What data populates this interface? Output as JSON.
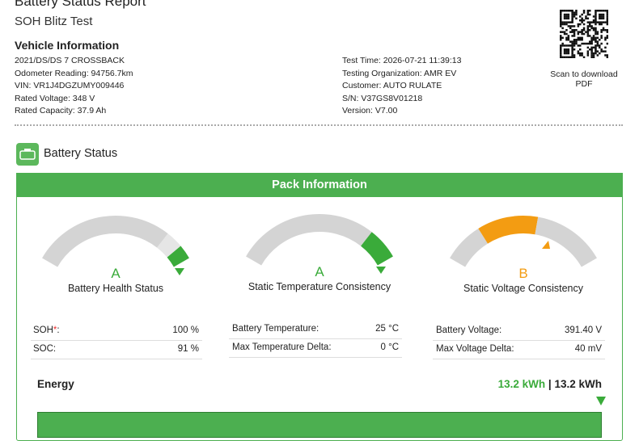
{
  "header": {
    "title": "Battery Status Report",
    "subtitle": "SOH Blitz Test"
  },
  "vehicle": {
    "heading": "Vehicle Information",
    "left": [
      "2021/DS/DS 7 CROSSBACK",
      "Odometer Reading: 94756.7km",
      "VIN: VR1J4DGZUMY009446",
      "Rated Voltage: 348 V",
      "Rated Capacity: 37.9 Ah"
    ],
    "right": [
      "Test Time: 2026-07-21 11:39:13",
      "Testing Organization: AMR EV",
      "Customer: AUTO RULATE",
      "S/N: V37GS8V01218",
      "Version: V7.00"
    ],
    "qr_caption": "Scan to download PDF"
  },
  "section": {
    "title": "Battery Status"
  },
  "pack": {
    "title": "Pack Information",
    "gauges": [
      {
        "grade": "A",
        "label": "Battery Health Status",
        "rows": [
          {
            "label": "SOH",
            "star": "*",
            "suffix": ":",
            "value": "100 %"
          },
          {
            "label": "SOC:",
            "value": "91 %"
          }
        ]
      },
      {
        "grade": "A",
        "label": "Static Temperature Consistency",
        "rows": [
          {
            "label": "Battery Temperature:",
            "value": "25 °C"
          },
          {
            "label": "Max Temperature Delta:",
            "value": "0 °C"
          }
        ]
      },
      {
        "grade": "B",
        "label": "Static Voltage Consistency",
        "rows": [
          {
            "label": "Battery Voltage:",
            "value": "391.40 V"
          },
          {
            "label": "Max Voltage Delta:",
            "value": "40 mV"
          }
        ]
      }
    ]
  },
  "energy": {
    "label": "Energy",
    "current": "13.2 kWh",
    "separator": "|",
    "total": "13.2 kWh"
  }
}
